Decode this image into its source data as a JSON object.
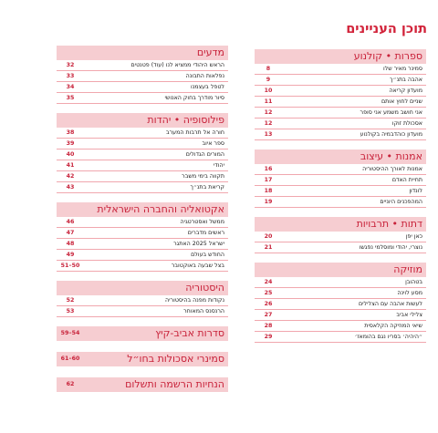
{
  "title": "תוכן העניינים",
  "colors": {
    "accent": "#c8223a",
    "band": "#f6cdd1",
    "rule": "#f1a7ae"
  },
  "right_column": [
    {
      "heading": "ספרות • קולנוע",
      "entries": [
        {
          "title": "סמינר מאיר שלו",
          "page": "8"
        },
        {
          "title": "אהבה בתנ״ך",
          "page": "9"
        },
        {
          "title": "מועדון קריאה",
          "page": "10"
        },
        {
          "title": "שניים לחוץ אותם",
          "page": "11"
        },
        {
          "title": "אני חושב משמע אני סופר",
          "page": "12"
        },
        {
          "title": "אסכולת זוקו",
          "page": "12"
        },
        {
          "title": "מועדון כוהדבמיה בקולנוע",
          "page": "13"
        }
      ]
    },
    {
      "heading": "אמנות • עיצוב",
      "entries": [
        {
          "title": "אמנות לאורך ההיסטוריה",
          "page": "16"
        },
        {
          "title": "תחיית האדם",
          "page": "17"
        },
        {
          "title": "לונדון",
          "page": "18"
        },
        {
          "title": "המהפכנים היוניים",
          "page": "19"
        }
      ]
    },
    {
      "heading": "דתות • תרבויות",
      "entries": [
        {
          "title": "כאן יפן",
          "page": "20"
        },
        {
          "title": "נוצרי, יהודי ומוסלמי נפגשו",
          "page": "21"
        }
      ]
    },
    {
      "heading": "מוזיקה",
      "entries": [
        {
          "title": "בטהובן",
          "page": "24"
        },
        {
          "title": "מסע לוינה",
          "page": "25"
        },
        {
          "title": "לעשות אהבה עם הצלילים",
          "page": "26"
        },
        {
          "title": "צלילי אביב",
          "page": "27"
        },
        {
          "title": "שיאי המוזיקה הקלאסית",
          "page": "28"
        },
        {
          "title": "״היהיה׳ בסריו נגם בהומאז׳",
          "page": "29"
        }
      ]
    }
  ],
  "left_column": [
    {
      "heading": "מדעים",
      "entries": [
        {
          "title": "הראש היהודי ממציא לנו (עוד) פטנטים",
          "page": "32"
        },
        {
          "title": "נפלאות התבונה",
          "page": "33"
        },
        {
          "title": "לטפל בעצמנו",
          "page": "34"
        },
        {
          "title": "סיור מודרך בחוק האנושי",
          "page": "35"
        }
      ]
    },
    {
      "heading": "פילוסופיה • יהדות",
      "entries": [
        {
          "title": "חורה אל תרבות המערב",
          "page": "38"
        },
        {
          "title": "ספר איוב",
          "page": "39"
        },
        {
          "title": "המורים הגדולים",
          "page": "40"
        },
        {
          "title": "יהודי",
          "page": "41"
        },
        {
          "title": "תקווה בימי משבר",
          "page": "42"
        },
        {
          "title": "קריאת בתנ״ך",
          "page": "43"
        }
      ]
    },
    {
      "heading": "אקטואליה והחברה הישראלית",
      "entries": [
        {
          "title": "ממשל ואסטרטגיה",
          "page": "46"
        },
        {
          "title": "ראשים מדברים",
          "page": "47"
        },
        {
          "title": "ישראל 2025 האתגר",
          "page": "48"
        },
        {
          "title": "החודש בעולם",
          "page": "49"
        },
        {
          "title": "בצל שבעה באוקטובר",
          "page": "50–51"
        }
      ]
    },
    {
      "heading": "היסטוריה",
      "entries": [
        {
          "title": "נקודות מפנה בהיסטוריה",
          "page": "52"
        },
        {
          "title": "הרנסנס המאוחר",
          "page": "53"
        }
      ]
    }
  ],
  "big_sections": [
    {
      "title": "סדרות אביב-קיץ",
      "page": "54–59"
    },
    {
      "title": "סמינרי אסכולות בחו״ל",
      "page": "60–61"
    },
    {
      "title": "הנחיות הרשמה ותשלום",
      "page": "62"
    }
  ]
}
